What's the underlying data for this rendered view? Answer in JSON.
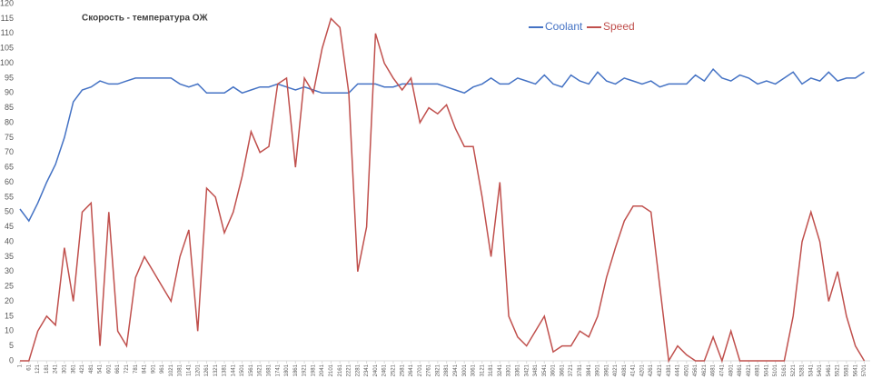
{
  "chart_data": {
    "type": "line",
    "title": "Скорость - температура ОЖ",
    "x": [
      1,
      61,
      121,
      181,
      241,
      301,
      361,
      421,
      481,
      541,
      601,
      661,
      721,
      781,
      841,
      901,
      961,
      1021,
      1081,
      1141,
      1201,
      1261,
      1321,
      1381,
      1441,
      1501,
      1561,
      1621,
      1681,
      1741,
      1801,
      1861,
      1921,
      1981,
      2041,
      2101,
      2161,
      2221,
      2281,
      2341,
      2401,
      2461,
      2521,
      2581,
      2641,
      2701,
      2761,
      2821,
      2881,
      2941,
      3001,
      3061,
      3121,
      3181,
      3241,
      3301,
      3361,
      3421,
      3481,
      3541,
      3601,
      3661,
      3721,
      3781,
      3841,
      3901,
      3961,
      4021,
      4081,
      4141,
      4201,
      4261,
      4321,
      4381,
      4441,
      4501,
      4561,
      4621,
      4681,
      4741,
      4801,
      4861,
      4921,
      4981,
      5041,
      5101,
      5161,
      5221,
      5281,
      5341,
      5401,
      5461,
      5521,
      5581,
      5641,
      5701
    ],
    "series": [
      {
        "name": "Coolant",
        "color": "#4472c4",
        "values": [
          51,
          47,
          53,
          60,
          66,
          75,
          87,
          91,
          92,
          94,
          93,
          93,
          94,
          95,
          95,
          95,
          95,
          95,
          93,
          92,
          93,
          90,
          90,
          90,
          92,
          90,
          91,
          92,
          92,
          93,
          92,
          91,
          92,
          91,
          90,
          90,
          90,
          90,
          93,
          93,
          93,
          92,
          92,
          93,
          93,
          93,
          93,
          93,
          92,
          91,
          90,
          92,
          93,
          95,
          93,
          93,
          95,
          94,
          93,
          96,
          93,
          92,
          96,
          94,
          93,
          97,
          94,
          93,
          95,
          94,
          93,
          94,
          92,
          93,
          93,
          93,
          96,
          94,
          98,
          95,
          94,
          96,
          95,
          93,
          94,
          93,
          95,
          97,
          93,
          95,
          94,
          97,
          94,
          95,
          95,
          97
        ]
      },
      {
        "name": "Speed",
        "color": "#c0504d",
        "values": [
          0,
          0,
          10,
          15,
          12,
          38,
          20,
          50,
          53,
          5,
          50,
          10,
          5,
          28,
          35,
          30,
          25,
          20,
          35,
          44,
          10,
          58,
          55,
          43,
          50,
          62,
          77,
          70,
          72,
          93,
          95,
          65,
          95,
          90,
          105,
          115,
          112,
          90,
          30,
          45,
          110,
          100,
          95,
          91,
          95,
          80,
          85,
          83,
          86,
          78,
          72,
          72,
          55,
          35,
          60,
          15,
          8,
          5,
          10,
          15,
          3,
          5,
          5,
          10,
          8,
          15,
          28,
          38,
          47,
          52,
          52,
          50,
          25,
          0,
          5,
          2,
          0,
          0,
          8,
          0,
          10,
          0,
          0,
          0,
          0,
          0,
          0,
          15,
          40,
          50,
          40,
          20,
          30,
          15,
          5,
          0
        ]
      }
    ],
    "xlim": [
      1,
      5741
    ],
    "xticks": [
      1,
      61,
      121,
      181,
      241,
      301,
      361,
      421,
      481,
      541,
      601,
      661,
      721,
      781,
      841,
      901,
      961,
      1021,
      1081,
      1141,
      1201,
      1261,
      1321,
      1381,
      1441,
      1501,
      1561,
      1621,
      1681,
      1741,
      1801,
      1861,
      1921,
      1981,
      2041,
      2101,
      2161,
      2221,
      2281,
      2341,
      2401,
      2461,
      2521,
      2581,
      2641,
      2701,
      2761,
      2821,
      2881,
      2941,
      3001,
      3061,
      3121,
      3181,
      3241,
      3301,
      3361,
      3421,
      3481,
      3541,
      3601,
      3661,
      3721,
      3781,
      3841,
      3901,
      3961,
      4021,
      4081,
      4141,
      4201,
      4261,
      4321,
      4381,
      4441,
      4501,
      4561,
      4621,
      4681,
      4741,
      4801,
      4861,
      4921,
      4981,
      5041,
      5101,
      5161,
      5221,
      5281,
      5341,
      5401,
      5461,
      5521,
      5581,
      5641,
      5701
    ],
    "ylim": [
      0,
      120
    ],
    "yticks": [
      0,
      5,
      10,
      15,
      20,
      25,
      30,
      35,
      40,
      45,
      50,
      55,
      60,
      65,
      70,
      75,
      80,
      85,
      90,
      95,
      100,
      105,
      110,
      115,
      120
    ],
    "grid": false
  }
}
